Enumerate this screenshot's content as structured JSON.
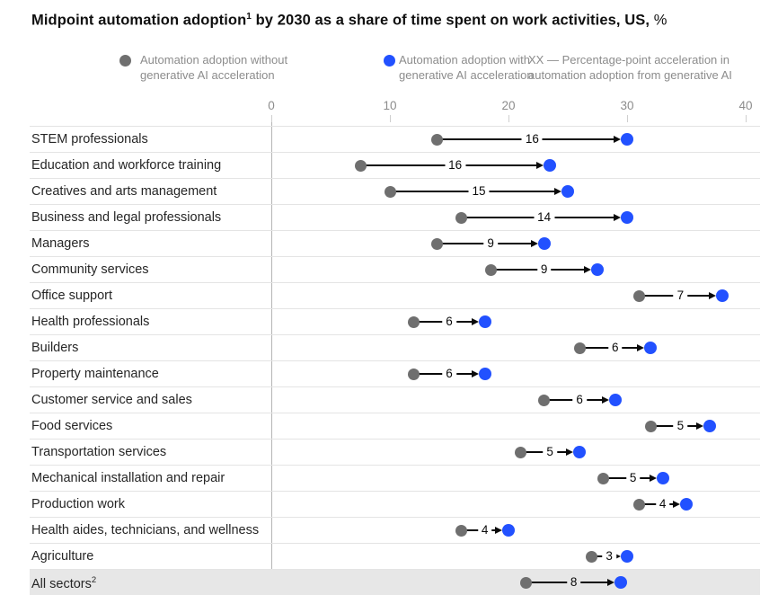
{
  "title": {
    "pre": "Midpoint automation adoption",
    "sup": "1",
    "post": " by 2030 as a share of time spent on work activities, US, ",
    "unit": "%"
  },
  "legend": {
    "without": {
      "label": "Automation adoption without generative AI acceleration",
      "color": "#6f6f6f"
    },
    "with": {
      "label": "Automation adoption with generative AI acceleration",
      "color": "#2251ff"
    },
    "note": "XX — Percentage-point acceleration in automation adoption from generative AI"
  },
  "colors": {
    "without_dot": "#6f6f6f",
    "with_dot": "#2251ff",
    "arrow": "#0a0a0a",
    "highlight_row": "#e7e7e7",
    "axis_text": "#8c8c8c",
    "row_line": "#e4e4e4"
  },
  "chart_data": {
    "type": "dumbbell",
    "title": "Midpoint automation adoption by 2030 as a share of time spent on work activities, US, %",
    "xlabel": "",
    "ylabel": "",
    "axis": {
      "min": 0,
      "max": 40,
      "ticks": [
        0,
        10,
        20,
        30,
        40
      ],
      "unit": "%"
    },
    "series": [
      {
        "name": "Automation adoption without generative AI acceleration",
        "color": "#6f6f6f"
      },
      {
        "name": "Automation adoption with generative AI acceleration",
        "color": "#2251ff"
      }
    ],
    "rows": [
      {
        "category": "STEM professionals",
        "without_genai": 14,
        "with_genai": 30,
        "acceleration": 16
      },
      {
        "category": "Education and workforce training",
        "without_genai": 7.5,
        "with_genai": 23.5,
        "acceleration": 16
      },
      {
        "category": "Creatives and arts management",
        "without_genai": 10,
        "with_genai": 25,
        "acceleration": 15
      },
      {
        "category": "Business and legal professionals",
        "without_genai": 16,
        "with_genai": 30,
        "acceleration": 14
      },
      {
        "category": "Managers",
        "without_genai": 14,
        "with_genai": 23,
        "acceleration": 9
      },
      {
        "category": "Community services",
        "without_genai": 18.5,
        "with_genai": 27.5,
        "acceleration": 9
      },
      {
        "category": "Office support",
        "without_genai": 31,
        "with_genai": 38,
        "acceleration": 7
      },
      {
        "category": "Health professionals",
        "without_genai": 12,
        "with_genai": 18,
        "acceleration": 6
      },
      {
        "category": "Builders",
        "without_genai": 26,
        "with_genai": 32,
        "acceleration": 6
      },
      {
        "category": "Property maintenance",
        "without_genai": 12,
        "with_genai": 18,
        "acceleration": 6
      },
      {
        "category": "Customer service and sales",
        "without_genai": 23,
        "with_genai": 29,
        "acceleration": 6
      },
      {
        "category": "Food services",
        "without_genai": 32,
        "with_genai": 37,
        "acceleration": 5
      },
      {
        "category": "Transportation services",
        "without_genai": 21,
        "with_genai": 26,
        "acceleration": 5
      },
      {
        "category": "Mechanical installation and repair",
        "without_genai": 28,
        "with_genai": 33,
        "acceleration": 5
      },
      {
        "category": "Production work",
        "without_genai": 31,
        "with_genai": 35,
        "acceleration": 4
      },
      {
        "category": "Health aides, technicians, and wellness",
        "without_genai": 16,
        "with_genai": 20,
        "acceleration": 4
      },
      {
        "category": "Agriculture",
        "without_genai": 27,
        "with_genai": 30,
        "acceleration": 3
      },
      {
        "category": "All sectors",
        "sup": "2",
        "without_genai": 21.5,
        "with_genai": 29.5,
        "acceleration": 8,
        "highlight": true
      }
    ]
  }
}
